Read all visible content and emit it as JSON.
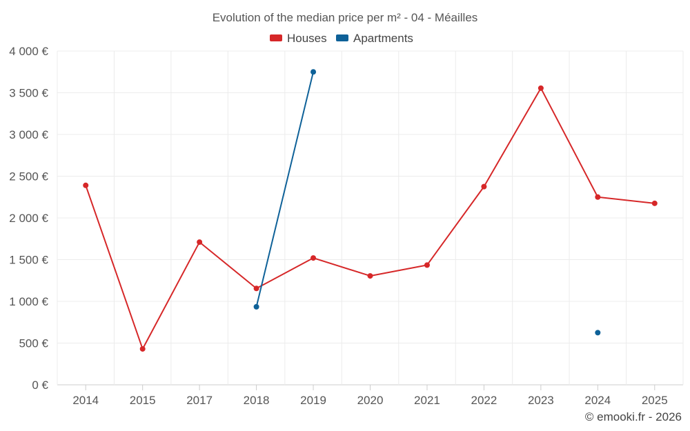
{
  "chart_data": {
    "type": "line",
    "title": "Evolution of the median price per m² - 04 - Méailles",
    "categories": [
      "2014",
      "2015",
      "2017",
      "2018",
      "2019",
      "2020",
      "2021",
      "2022",
      "2023",
      "2024",
      "2025"
    ],
    "series": [
      {
        "name": "Houses",
        "color": "#d62728",
        "values": [
          2390,
          430,
          1710,
          1155,
          1520,
          1305,
          1435,
          2375,
          3555,
          2250,
          2175
        ]
      },
      {
        "name": "Apartments",
        "color": "#0e6198",
        "values": [
          null,
          null,
          null,
          935,
          3750,
          null,
          null,
          null,
          null,
          625,
          null
        ]
      }
    ],
    "y_ticks": [
      "0 €",
      "500 €",
      "1 000 €",
      "1 500 €",
      "2 000 €",
      "2 500 €",
      "3 000 €",
      "3 500 €",
      "4 000 €"
    ],
    "ylim": [
      0,
      4000
    ],
    "xlabel": "",
    "ylabel": "",
    "grid": true,
    "legend_position": "top-center"
  },
  "credit": "© emooki.fr - 2026"
}
